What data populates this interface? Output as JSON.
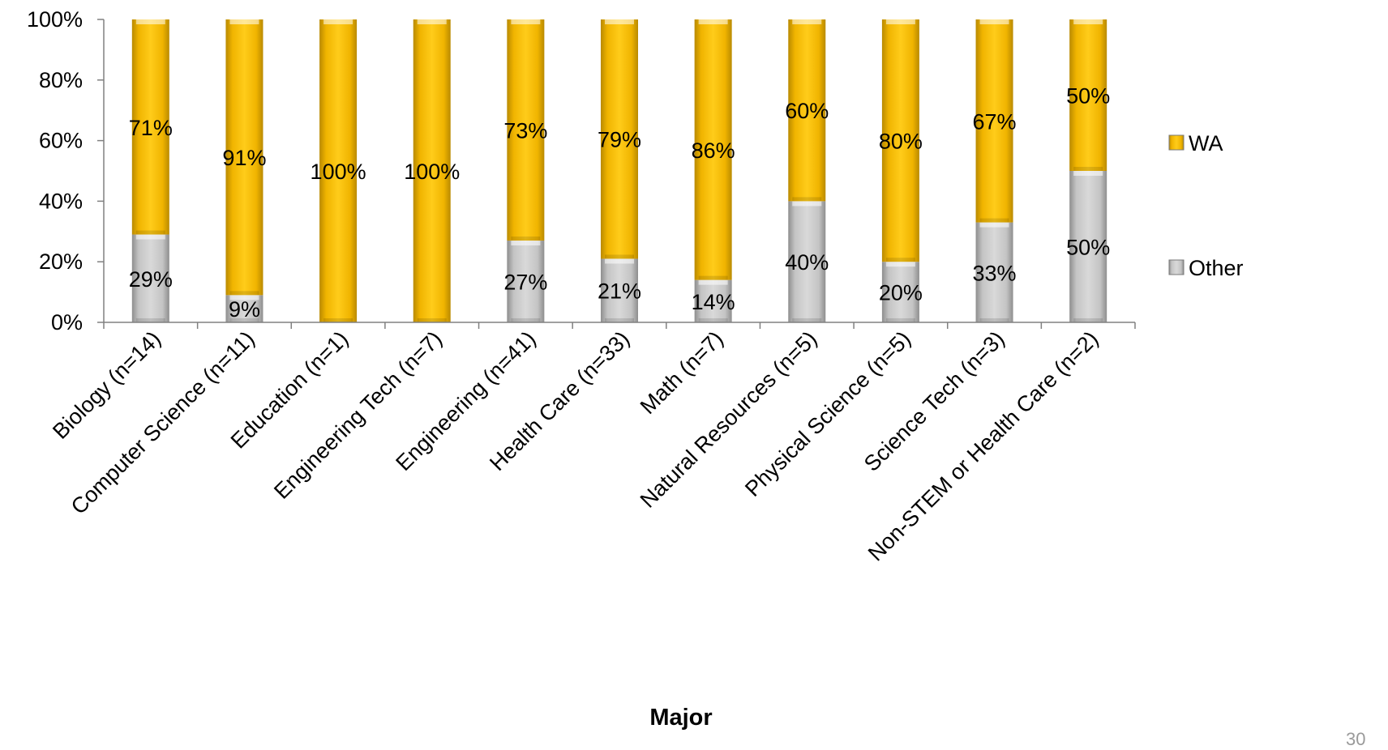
{
  "chart_data": {
    "type": "bar",
    "stacked": true,
    "normalized": true,
    "title": "",
    "xlabel": "Major",
    "ylabel": "",
    "ylim": [
      0,
      100
    ],
    "y_ticks": [
      "0%",
      "20%",
      "40%",
      "60%",
      "80%",
      "100%"
    ],
    "categories": [
      "Biology (n=14)",
      "Computer Science (n=11)",
      "Education (n=1)",
      "Engineering Tech (n=7)",
      "Engineering (n=41)",
      "Health Care (n=33)",
      "Math (n=7)",
      "Natural Resources (n=5)",
      "Physical Science (n=5)",
      "Science Tech (n=3)",
      "Non-STEM or Health Care (n=2)"
    ],
    "series": [
      {
        "name": "Other",
        "values": [
          29,
          9,
          0,
          0,
          27,
          21,
          14,
          40,
          20,
          33,
          50
        ],
        "labels": [
          "29%",
          "9%",
          "",
          "",
          "27%",
          "21%",
          "14%",
          "40%",
          "20%",
          "33%",
          "50%"
        ],
        "color": "#c9c9c9"
      },
      {
        "name": "WA",
        "values": [
          71,
          91,
          100,
          100,
          73,
          79,
          86,
          60,
          80,
          67,
          50
        ],
        "labels": [
          "71%",
          "91%",
          "100%",
          "100%",
          "73%",
          "79%",
          "86%",
          "60%",
          "80%",
          "67%",
          "50%"
        ],
        "color": "#f5bf0c"
      }
    ],
    "legend": {
      "position": "right",
      "items": [
        "WA",
        "Other"
      ]
    },
    "grid": false
  },
  "page_number": "30"
}
